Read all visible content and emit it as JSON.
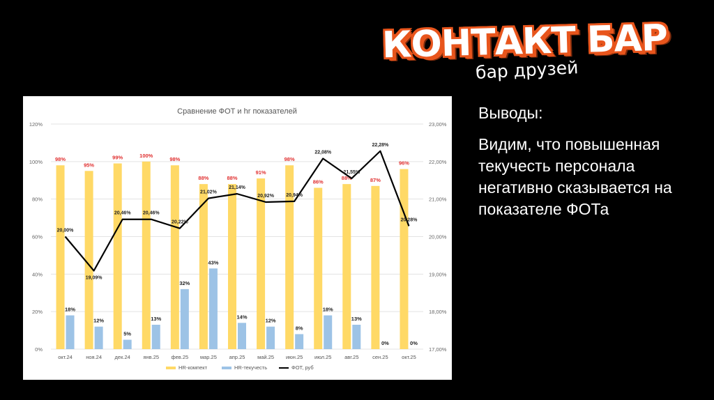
{
  "logo": {
    "main_text": "КОНТАКТ БАР",
    "sub_text": "бар друзей",
    "accent_color": "#e8551c"
  },
  "conclusions": {
    "heading": "Выводы:",
    "body": "Видим, что повышенная текучесть персонала негативно сказывается на показателе ФОТа"
  },
  "chart_data": {
    "type": "bar",
    "title": "Сравнение ФОТ и hr показателей",
    "categories": [
      "окт.24",
      "ноя.24",
      "дек.24",
      "янв.25",
      "фев.25",
      "мар.25",
      "апр.25",
      "май.25",
      "июн.25",
      "июл.25",
      "авг.25",
      "сен.25",
      "окт.25"
    ],
    "y_left": {
      "min": 0,
      "max": 120,
      "step": 20,
      "ticks": [
        "0%",
        "20%",
        "40%",
        "60%",
        "80%",
        "100%",
        "120%"
      ]
    },
    "y_right": {
      "min": 17,
      "max": 23,
      "step": 1,
      "ticks": [
        "17,00%",
        "18,00%",
        "19,00%",
        "20,00%",
        "21,00%",
        "22,00%",
        "23,00%"
      ]
    },
    "series": [
      {
        "name": "HR-компект",
        "kind": "bar",
        "axis": "left",
        "color": "#ffd966",
        "label_color": "#e03030",
        "values": [
          98,
          95,
          99,
          100,
          98,
          88,
          88,
          91,
          98,
          86,
          88,
          87,
          96
        ],
        "labels": [
          "98%",
          "95%",
          "99%",
          "100%",
          "98%",
          "88%",
          "88%",
          "91%",
          "98%",
          "86%",
          "88%",
          "87%",
          "96%"
        ]
      },
      {
        "name": "HR-текучесть",
        "kind": "bar",
        "axis": "left",
        "color": "#9dc3e6",
        "label_color": "#222222",
        "values": [
          18,
          12,
          5,
          13,
          32,
          43,
          14,
          12,
          8,
          18,
          13,
          0,
          0
        ],
        "labels": [
          "18%",
          "12%",
          "5%",
          "13%",
          "32%",
          "43%",
          "14%",
          "12%",
          "8%",
          "18%",
          "13%",
          "0%",
          "0%"
        ]
      },
      {
        "name": "ФОТ, руб",
        "kind": "line",
        "axis": "right",
        "color": "#000000",
        "label_color": "#222222",
        "values": [
          20.0,
          19.09,
          20.46,
          20.46,
          20.22,
          21.02,
          21.14,
          20.92,
          20.94,
          22.08,
          21.55,
          22.28,
          20.28
        ],
        "labels": [
          "20,00%",
          "19,09%",
          "20,46%",
          "20,46%",
          "20,22%",
          "21,02%",
          "21,14%",
          "20,92%",
          "20,94%",
          "22,08%",
          "21,55%",
          "22,28%",
          "20,28%"
        ]
      }
    ],
    "legend_position": "bottom",
    "grid": "horizontal"
  }
}
